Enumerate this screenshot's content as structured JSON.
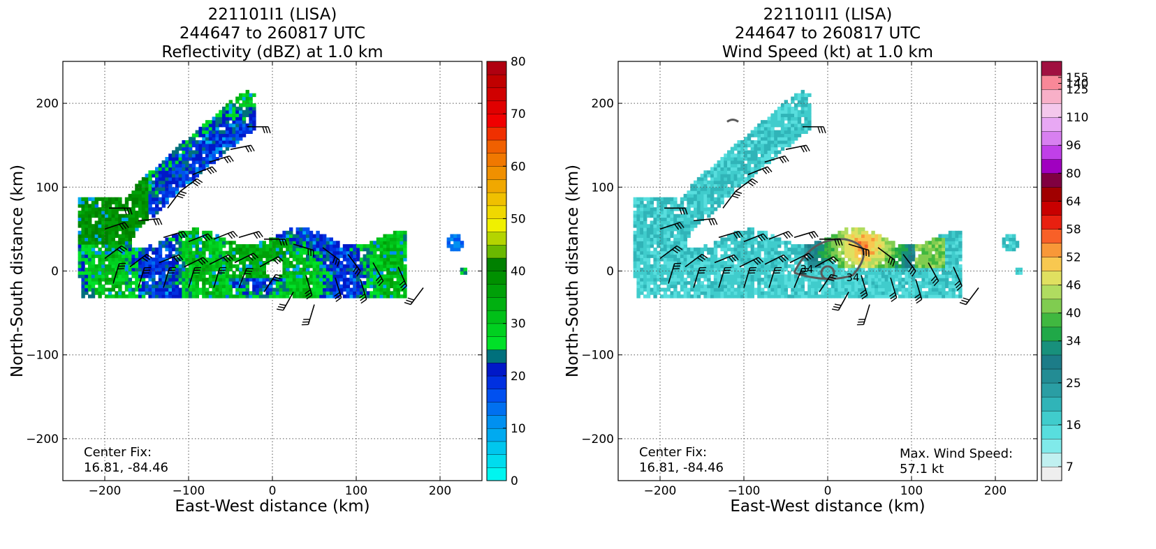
{
  "chart_data": [
    {
      "type": "heatmap",
      "title_lines": [
        "221101I1 (LISA)",
        "244647 to 260817 UTC",
        "Reflectivity (dBZ) at 1.0 km"
      ],
      "xlabel": "East-West distance (km)",
      "ylabel": "North-South distance (km)",
      "xlim": [
        -250,
        250
      ],
      "ylim": [
        -250,
        250
      ],
      "xticks": [
        -200,
        -100,
        0,
        100,
        200
      ],
      "yticks": [
        -200,
        -100,
        0,
        100,
        200
      ],
      "xtick_labels": [
        "−200",
        "−100",
        "0",
        "100",
        "200"
      ],
      "ytick_labels": [
        "−200",
        "−100",
        "0",
        "100",
        "200"
      ],
      "grid": true,
      "annotations": [
        {
          "text": "Center Fix:\n16.81, -84.46",
          "placement": "bottom-left"
        }
      ],
      "colorbar": {
        "min": 0,
        "max": 80,
        "levels": 32,
        "tick_values": [
          0,
          10,
          20,
          30,
          40,
          50,
          60,
          70,
          80
        ],
        "tick_labels": [
          "0",
          "10",
          "20",
          "30",
          "40",
          "50",
          "60",
          "70",
          "80"
        ],
        "colors": [
          "#00f5f0",
          "#00dcee",
          "#00c6ee",
          "#00aaf0",
          "#0090f0",
          "#0070f0",
          "#0050f0",
          "#0030e0",
          "#0018c8",
          "#00707c",
          "#00e028",
          "#00d020",
          "#00c018",
          "#00b010",
          "#00a008",
          "#009000",
          "#008000",
          "#6ab800",
          "#b4d400",
          "#f0f000",
          "#f0d800",
          "#f0c000",
          "#f0a800",
          "#f09000",
          "#f07800",
          "#f06000",
          "#f03000",
          "#f00000",
          "#e00000",
          "#d00000",
          "#c00000",
          "#b00010"
        ]
      },
      "field": {
        "arms": [
          {
            "start_angle_deg": 180,
            "end_angle_deg": 520,
            "radius_start_km": 12,
            "radius_end_km": 150,
            "width_km": 24,
            "value_dbz": 28
          },
          {
            "start_angle_deg": 90,
            "end_angle_deg": 300,
            "radius_start_km": 60,
            "radius_end_km": 205,
            "width_km": 30,
            "value_dbz": 25
          }
        ],
        "band": {
          "x_range_km": [
            -230,
            160
          ],
          "y_range_km": [
            -35,
            50
          ],
          "value_dbz": 26
        },
        "eye": {
          "x_km": 0,
          "y_km": 0,
          "radius_km": 12
        }
      }
    },
    {
      "type": "heatmap",
      "title_lines": [
        "221101I1 (LISA)",
        "244647 to 260817 UTC",
        "Wind Speed (kt) at 1.0 km"
      ],
      "xlabel": "East-West distance (km)",
      "ylabel": "North-South distance (km)",
      "xlim": [
        -250,
        250
      ],
      "ylim": [
        -250,
        250
      ],
      "xticks": [
        -200,
        -100,
        0,
        100,
        200
      ],
      "yticks": [
        -200,
        -100,
        0,
        100,
        200
      ],
      "xtick_labels": [
        "−200",
        "−100",
        "0",
        "100",
        "200"
      ],
      "ytick_labels": [
        "−200",
        "−100",
        "0",
        "100",
        "200"
      ],
      "grid": true,
      "annotations": [
        {
          "text": "Center Fix:\n16.81, -84.46",
          "placement": "bottom-left"
        },
        {
          "text": "Max. Wind Speed:\n57.1 kt",
          "placement": "bottom-right"
        }
      ],
      "contour_labels": [
        "34",
        "34"
      ],
      "max_wind_kt": 57.1,
      "colorbar": {
        "min": 4,
        "max": 160,
        "levels": 30,
        "tick_values": [
          7,
          16,
          25,
          34,
          40,
          46,
          52,
          58,
          64,
          80,
          96,
          110,
          125,
          140,
          155
        ],
        "tick_labels": [
          "7",
          "16",
          "25",
          "34",
          "40",
          "46",
          "52",
          "58",
          "64",
          "80",
          "96",
          "110",
          "125",
          "140",
          "155"
        ],
        "colors": [
          "#eeeeee",
          "#c0f0f0",
          "#80eaea",
          "#58dede",
          "#40cccc",
          "#30b4b8",
          "#2a9ea4",
          "#238c94",
          "#1c7c88",
          "#18907c",
          "#20a848",
          "#40b840",
          "#80cc50",
          "#b0dc60",
          "#e0e060",
          "#f8c850",
          "#f89838",
          "#f86028",
          "#e82010",
          "#c80000",
          "#a00000",
          "#800040",
          "#a000c0",
          "#c040e8",
          "#d880f0",
          "#e8a8f4",
          "#f4c8ec",
          "#f8b0c8",
          "#f88898",
          "#a01040"
        ],
        "value_levels": [
          4,
          7,
          10,
          13,
          16,
          19,
          22,
          25,
          28,
          31,
          34,
          37,
          40,
          43,
          46,
          49,
          52,
          55,
          58,
          61,
          64,
          72,
          80,
          88,
          96,
          103,
          110,
          118,
          125,
          160
        ]
      },
      "field": {
        "low_region": {
          "value_kt": 22
        },
        "high_core": {
          "x_km": 40,
          "y_km": 30,
          "value_kt": 55
        },
        "eye": {
          "x_km": 0,
          "y_km": 0,
          "radius_km": 10,
          "value_kt": 18
        }
      }
    }
  ],
  "wind_barbs": [
    {
      "x": -30,
      "y": 172,
      "u": 1,
      "v": 0
    },
    {
      "x": -50,
      "y": 145,
      "u": 1,
      "v": 0.2
    },
    {
      "x": -75,
      "y": 130,
      "u": 1,
      "v": 0.3
    },
    {
      "x": -95,
      "y": 115,
      "u": 1,
      "v": 0.4
    },
    {
      "x": -110,
      "y": 95,
      "u": 0.8,
      "v": 0.6
    },
    {
      "x": -125,
      "y": 75,
      "u": 0.6,
      "v": 0.8
    },
    {
      "x": -195,
      "y": 75,
      "u": 1,
      "v": 0
    },
    {
      "x": -200,
      "y": 50,
      "u": 0.9,
      "v": 0.3
    },
    {
      "x": -160,
      "y": 60,
      "u": 1,
      "v": 0.1
    },
    {
      "x": -130,
      "y": 40,
      "u": 1,
      "v": 0.3
    },
    {
      "x": -100,
      "y": 35,
      "u": 1,
      "v": 0.4
    },
    {
      "x": -70,
      "y": 38,
      "u": 1,
      "v": 0.4
    },
    {
      "x": -40,
      "y": 40,
      "u": 1,
      "v": 0.3
    },
    {
      "x": -10,
      "y": 38,
      "u": 1,
      "v": 0
    },
    {
      "x": 25,
      "y": 32,
      "u": 1,
      "v": -0.3
    },
    {
      "x": 60,
      "y": 28,
      "u": 0.8,
      "v": -0.6
    },
    {
      "x": 90,
      "y": 20,
      "u": 0.6,
      "v": -0.8
    },
    {
      "x": 120,
      "y": 10,
      "u": 0.5,
      "v": -0.9
    },
    {
      "x": 150,
      "y": 5,
      "u": 0.4,
      "v": -0.9
    },
    {
      "x": -200,
      "y": 15,
      "u": 0.8,
      "v": 0.6
    },
    {
      "x": -170,
      "y": 5,
      "u": 0.8,
      "v": 0.6
    },
    {
      "x": -135,
      "y": 10,
      "u": 1,
      "v": 0.4
    },
    {
      "x": -105,
      "y": 5,
      "u": 1,
      "v": 0.5
    },
    {
      "x": -75,
      "y": 8,
      "u": 1,
      "v": 0.5
    },
    {
      "x": -45,
      "y": 10,
      "u": 1,
      "v": 0.5
    },
    {
      "x": -15,
      "y": 5,
      "u": 0.9,
      "v": 0.5
    },
    {
      "x": 40,
      "y": -5,
      "u": 0.3,
      "v": -1
    },
    {
      "x": 75,
      "y": -8,
      "u": 0.3,
      "v": -1
    },
    {
      "x": 105,
      "y": -10,
      "u": 0.3,
      "v": -1
    },
    {
      "x": -190,
      "y": -15,
      "u": 0.3,
      "v": 1
    },
    {
      "x": -160,
      "y": -20,
      "u": 0.3,
      "v": 1
    },
    {
      "x": -130,
      "y": -20,
      "u": 0.3,
      "v": 1
    },
    {
      "x": -100,
      "y": -20,
      "u": 0.3,
      "v": 1
    },
    {
      "x": -70,
      "y": -20,
      "u": 0.3,
      "v": 1
    },
    {
      "x": -40,
      "y": -20,
      "u": 0.4,
      "v": 1
    },
    {
      "x": -10,
      "y": -25,
      "u": 0.6,
      "v": 0.9
    },
    {
      "x": 25,
      "y": -25,
      "u": -0.5,
      "v": -0.9
    },
    {
      "x": 50,
      "y": -40,
      "u": -0.3,
      "v": -1
    },
    {
      "x": 180,
      "y": -20,
      "u": -0.6,
      "v": -0.8
    }
  ]
}
